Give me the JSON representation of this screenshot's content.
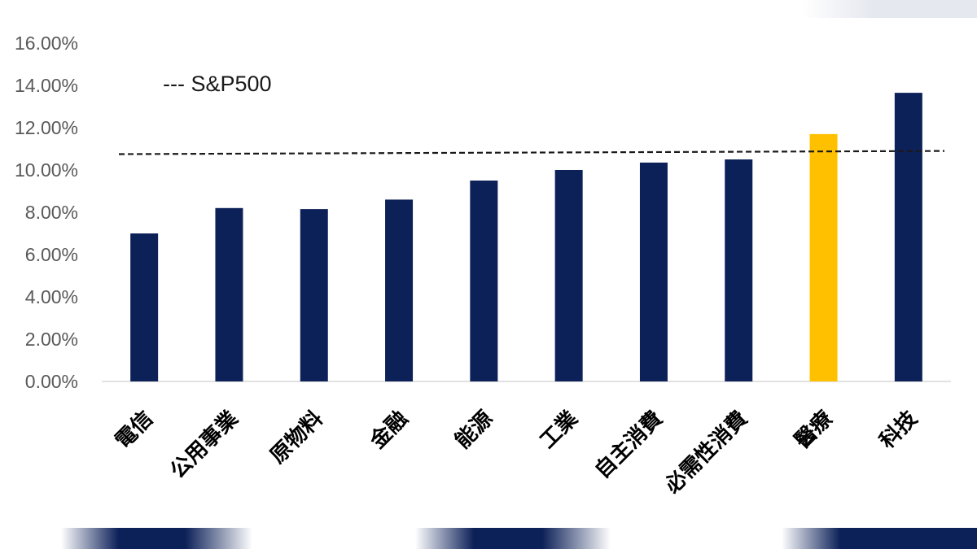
{
  "chart_data": {
    "type": "bar",
    "categories": [
      "電信",
      "公用事業",
      "原物料",
      "金融",
      "能源",
      "工業",
      "自主消費",
      "必需性消費",
      "醫療",
      "科技"
    ],
    "values": [
      7.0,
      8.2,
      8.15,
      8.6,
      9.5,
      10.0,
      10.35,
      10.5,
      11.7,
      13.65
    ],
    "highlight_category": "醫療",
    "colors": {
      "bar": "#0d2159",
      "highlight": "#ffc000",
      "reference": "#1a1a1a",
      "deco": "#0d2159"
    },
    "reference_line": {
      "label": "--- S&P500",
      "start": 10.75,
      "end": 10.9,
      "style": "dashed"
    },
    "yticks": [
      "0.00%",
      "2.00%",
      "4.00%",
      "6.00%",
      "8.00%",
      "10.00%",
      "12.00%",
      "14.00%",
      "16.00%"
    ],
    "ylim": [
      0,
      16
    ],
    "grid": false,
    "legend": "top-left"
  }
}
